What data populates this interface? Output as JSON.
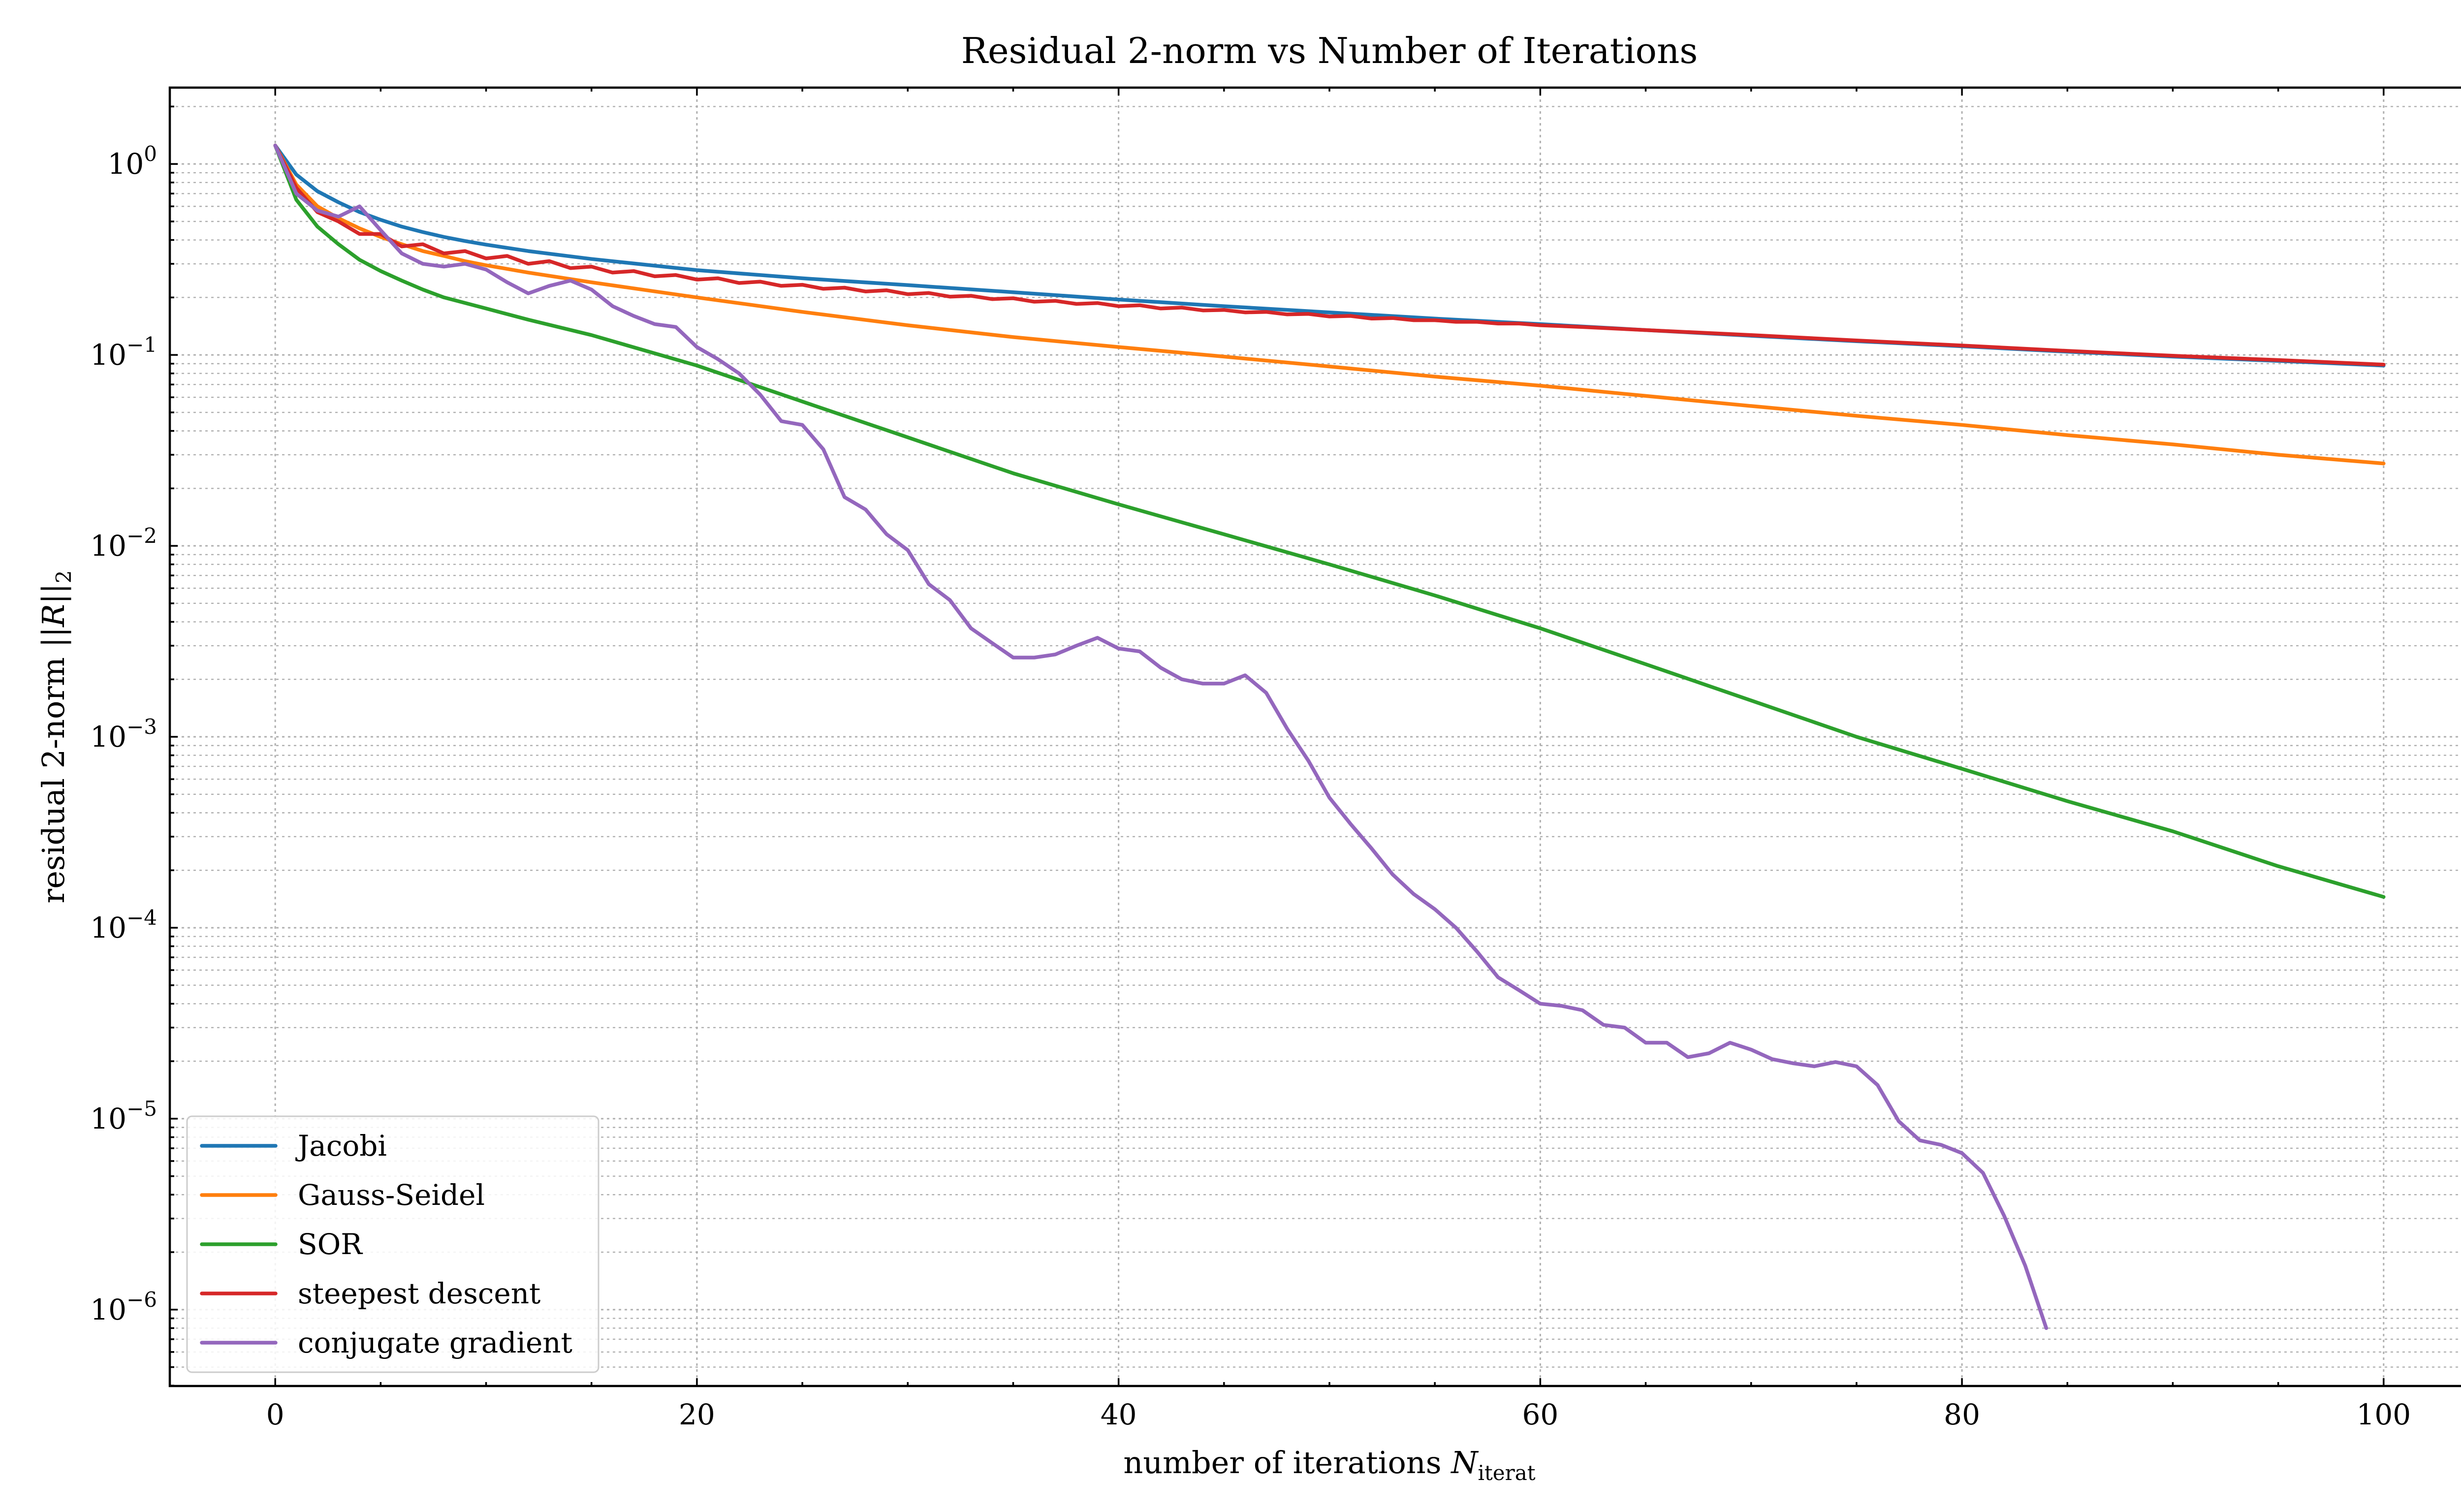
{
  "chart_data": {
    "type": "line",
    "title": "Residual 2-norm vs Number of Iterations",
    "xlabel": {
      "main": "number of iterations ",
      "var": "N",
      "sub": "iterat"
    },
    "ylabel": {
      "main": "residual 2-norm ",
      "norm": "||R||",
      "sub": "2"
    },
    "xlim": [
      -5,
      105
    ],
    "ylim_log10": [
      -6.4,
      0.4
    ],
    "yscale": "log",
    "grid": true,
    "legend_position": "lower-left",
    "x_ticks": [
      {
        "value": 0,
        "label": "0"
      },
      {
        "value": 20,
        "label": "20"
      },
      {
        "value": 40,
        "label": "40"
      },
      {
        "value": 60,
        "label": "60"
      },
      {
        "value": 80,
        "label": "80"
      },
      {
        "value": 100,
        "label": "100"
      }
    ],
    "y_ticks": [
      {
        "exp": 0,
        "base": "10",
        "sup": "0"
      },
      {
        "exp": -1,
        "base": "10",
        "sup": "−1"
      },
      {
        "exp": -2,
        "base": "10",
        "sup": "−2"
      },
      {
        "exp": -3,
        "base": "10",
        "sup": "−3"
      },
      {
        "exp": -4,
        "base": "10",
        "sup": "−4"
      },
      {
        "exp": -5,
        "base": "10",
        "sup": "−5"
      },
      {
        "exp": -6,
        "base": "10",
        "sup": "−6"
      }
    ],
    "series": [
      {
        "name": "Jacobi",
        "color": "#1f77b4",
        "points": [
          [
            0,
            1.25
          ],
          [
            1,
            0.88
          ],
          [
            2,
            0.72
          ],
          [
            3,
            0.63
          ],
          [
            4,
            0.56
          ],
          [
            5,
            0.51
          ],
          [
            6,
            0.47
          ],
          [
            7,
            0.44
          ],
          [
            8,
            0.415
          ],
          [
            9,
            0.395
          ],
          [
            10,
            0.378
          ],
          [
            12,
            0.35
          ],
          [
            15,
            0.318
          ],
          [
            20,
            0.278
          ],
          [
            25,
            0.252
          ],
          [
            30,
            0.232
          ],
          [
            35,
            0.213
          ],
          [
            40,
            0.195
          ],
          [
            45,
            0.18
          ],
          [
            50,
            0.167
          ],
          [
            55,
            0.155
          ],
          [
            60,
            0.145
          ],
          [
            65,
            0.135
          ],
          [
            70,
            0.126
          ],
          [
            75,
            0.118
          ],
          [
            80,
            0.111
          ],
          [
            85,
            0.104
          ],
          [
            90,
            0.098
          ],
          [
            95,
            0.093
          ],
          [
            100,
            0.088
          ]
        ]
      },
      {
        "name": "Gauss-Seidel",
        "color": "#ff7f0e",
        "points": [
          [
            0,
            1.25
          ],
          [
            1,
            0.78
          ],
          [
            2,
            0.6
          ],
          [
            3,
            0.52
          ],
          [
            4,
            0.46
          ],
          [
            5,
            0.415
          ],
          [
            6,
            0.38
          ],
          [
            7,
            0.35
          ],
          [
            8,
            0.33
          ],
          [
            9,
            0.31
          ],
          [
            10,
            0.295
          ],
          [
            12,
            0.27
          ],
          [
            15,
            0.24
          ],
          [
            20,
            0.2
          ],
          [
            25,
            0.168
          ],
          [
            30,
            0.143
          ],
          [
            35,
            0.124
          ],
          [
            40,
            0.11
          ],
          [
            45,
            0.098
          ],
          [
            50,
            0.087
          ],
          [
            55,
            0.077
          ],
          [
            60,
            0.069
          ],
          [
            65,
            0.061
          ],
          [
            70,
            0.054
          ],
          [
            75,
            0.048
          ],
          [
            80,
            0.043
          ],
          [
            85,
            0.038
          ],
          [
            90,
            0.034
          ],
          [
            95,
            0.03
          ],
          [
            100,
            0.027
          ]
        ]
      },
      {
        "name": "SOR",
        "color": "#2ca02c",
        "points": [
          [
            0,
            1.25
          ],
          [
            1,
            0.65
          ],
          [
            2,
            0.47
          ],
          [
            3,
            0.38
          ],
          [
            4,
            0.315
          ],
          [
            5,
            0.275
          ],
          [
            6,
            0.245
          ],
          [
            7,
            0.22
          ],
          [
            8,
            0.2
          ],
          [
            10,
            0.175
          ],
          [
            12,
            0.153
          ],
          [
            15,
            0.127
          ],
          [
            20,
            0.088
          ],
          [
            25,
            0.057
          ],
          [
            30,
            0.037
          ],
          [
            35,
            0.024
          ],
          [
            40,
            0.0165
          ],
          [
            45,
            0.0115
          ],
          [
            50,
            0.008
          ],
          [
            55,
            0.0055
          ],
          [
            60,
            0.0037
          ],
          [
            65,
            0.0024
          ],
          [
            70,
            0.00155
          ],
          [
            75,
            0.001
          ],
          [
            80,
            0.00068
          ],
          [
            85,
            0.00046
          ],
          [
            90,
            0.00032
          ],
          [
            95,
            0.00021
          ],
          [
            100,
            0.000145
          ]
        ]
      },
      {
        "name": "steepest descent",
        "color": "#d62728",
        "points": [
          [
            0,
            1.25
          ],
          [
            1,
            0.75
          ],
          [
            2,
            0.56
          ],
          [
            3,
            0.5
          ],
          [
            4,
            0.43
          ],
          [
            5,
            0.43
          ],
          [
            6,
            0.37
          ],
          [
            7,
            0.38
          ],
          [
            8,
            0.34
          ],
          [
            9,
            0.35
          ],
          [
            10,
            0.32
          ],
          [
            11,
            0.33
          ],
          [
            12,
            0.3
          ],
          [
            13,
            0.31
          ],
          [
            14,
            0.285
          ],
          [
            15,
            0.29
          ],
          [
            16,
            0.27
          ],
          [
            17,
            0.275
          ],
          [
            18,
            0.258
          ],
          [
            19,
            0.262
          ],
          [
            20,
            0.248
          ],
          [
            21,
            0.252
          ],
          [
            22,
            0.238
          ],
          [
            23,
            0.242
          ],
          [
            24,
            0.23
          ],
          [
            25,
            0.233
          ],
          [
            26,
            0.222
          ],
          [
            27,
            0.225
          ],
          [
            28,
            0.215
          ],
          [
            29,
            0.218
          ],
          [
            30,
            0.208
          ],
          [
            31,
            0.211
          ],
          [
            32,
            0.202
          ],
          [
            33,
            0.204
          ],
          [
            34,
            0.196
          ],
          [
            35,
            0.198
          ],
          [
            36,
            0.19
          ],
          [
            37,
            0.192
          ],
          [
            38,
            0.185
          ],
          [
            39,
            0.187
          ],
          [
            40,
            0.18
          ],
          [
            41,
            0.182
          ],
          [
            42,
            0.175
          ],
          [
            43,
            0.177
          ],
          [
            44,
            0.171
          ],
          [
            45,
            0.172
          ],
          [
            46,
            0.167
          ],
          [
            47,
            0.168
          ],
          [
            48,
            0.163
          ],
          [
            49,
            0.164
          ],
          [
            50,
            0.159
          ],
          [
            51,
            0.16
          ],
          [
            52,
            0.155
          ],
          [
            53,
            0.156
          ],
          [
            54,
            0.152
          ],
          [
            55,
            0.152
          ],
          [
            56,
            0.149
          ],
          [
            57,
            0.149
          ],
          [
            58,
            0.146
          ],
          [
            59,
            0.146
          ],
          [
            60,
            0.143
          ],
          [
            62,
            0.14
          ],
          [
            65,
            0.135
          ],
          [
            70,
            0.127
          ],
          [
            75,
            0.119
          ],
          [
            80,
            0.112
          ],
          [
            85,
            0.105
          ],
          [
            90,
            0.099
          ],
          [
            95,
            0.094
          ],
          [
            100,
            0.089
          ]
        ]
      },
      {
        "name": "conjugate gradient",
        "color": "#9467bd",
        "points": [
          [
            0,
            1.25
          ],
          [
            1,
            0.7
          ],
          [
            2,
            0.57
          ],
          [
            3,
            0.53
          ],
          [
            4,
            0.6
          ],
          [
            5,
            0.45
          ],
          [
            6,
            0.34
          ],
          [
            7,
            0.3
          ],
          [
            8,
            0.29
          ],
          [
            9,
            0.3
          ],
          [
            10,
            0.28
          ],
          [
            11,
            0.24
          ],
          [
            12,
            0.21
          ],
          [
            13,
            0.23
          ],
          [
            14,
            0.245
          ],
          [
            15,
            0.22
          ],
          [
            16,
            0.18
          ],
          [
            17,
            0.16
          ],
          [
            18,
            0.145
          ],
          [
            19,
            0.14
          ],
          [
            20,
            0.11
          ],
          [
            21,
            0.095
          ],
          [
            22,
            0.08
          ],
          [
            23,
            0.062
          ],
          [
            24,
            0.045
          ],
          [
            25,
            0.043
          ],
          [
            26,
            0.032
          ],
          [
            27,
            0.018
          ],
          [
            28,
            0.0155
          ],
          [
            29,
            0.0115
          ],
          [
            30,
            0.0095
          ],
          [
            31,
            0.0063
          ],
          [
            32,
            0.0052
          ],
          [
            33,
            0.0037
          ],
          [
            34,
            0.0031
          ],
          [
            35,
            0.0026
          ],
          [
            36,
            0.0026
          ],
          [
            37,
            0.0027
          ],
          [
            38,
            0.003
          ],
          [
            39,
            0.0033
          ],
          [
            40,
            0.0029
          ],
          [
            41,
            0.0028
          ],
          [
            42,
            0.0023
          ],
          [
            43,
            0.002
          ],
          [
            44,
            0.0019
          ],
          [
            45,
            0.0019
          ],
          [
            46,
            0.0021
          ],
          [
            47,
            0.0017
          ],
          [
            48,
            0.0011
          ],
          [
            49,
            0.00075
          ],
          [
            50,
            0.00048
          ],
          [
            51,
            0.00035
          ],
          [
            52,
            0.00026
          ],
          [
            53,
            0.00019
          ],
          [
            54,
            0.00015
          ],
          [
            55,
            0.000125
          ],
          [
            56,
            0.0001
          ],
          [
            57,
            7.5e-05
          ],
          [
            58,
            5.5e-05
          ],
          [
            59,
            4.7e-05
          ],
          [
            60,
            4e-05
          ],
          [
            61,
            3.9e-05
          ],
          [
            62,
            3.7e-05
          ],
          [
            63,
            3.1e-05
          ],
          [
            64,
            3e-05
          ],
          [
            65,
            2.5e-05
          ],
          [
            66,
            2.5e-05
          ],
          [
            67,
            2.1e-05
          ],
          [
            68,
            2.2e-05
          ],
          [
            69,
            2.5e-05
          ],
          [
            70,
            2.3e-05
          ],
          [
            71,
            2.05e-05
          ],
          [
            72,
            1.95e-05
          ],
          [
            73,
            1.88e-05
          ],
          [
            74,
            1.98e-05
          ],
          [
            75,
            1.88e-05
          ],
          [
            76,
            1.5e-05
          ],
          [
            77,
            9.7e-06
          ],
          [
            78,
            7.7e-06
          ],
          [
            79,
            7.3e-06
          ],
          [
            80,
            6.6e-06
          ],
          [
            81,
            5.2e-06
          ],
          [
            82,
            3.1e-06
          ],
          [
            83,
            1.7e-06
          ],
          [
            84,
            8e-07
          ]
        ]
      }
    ]
  }
}
